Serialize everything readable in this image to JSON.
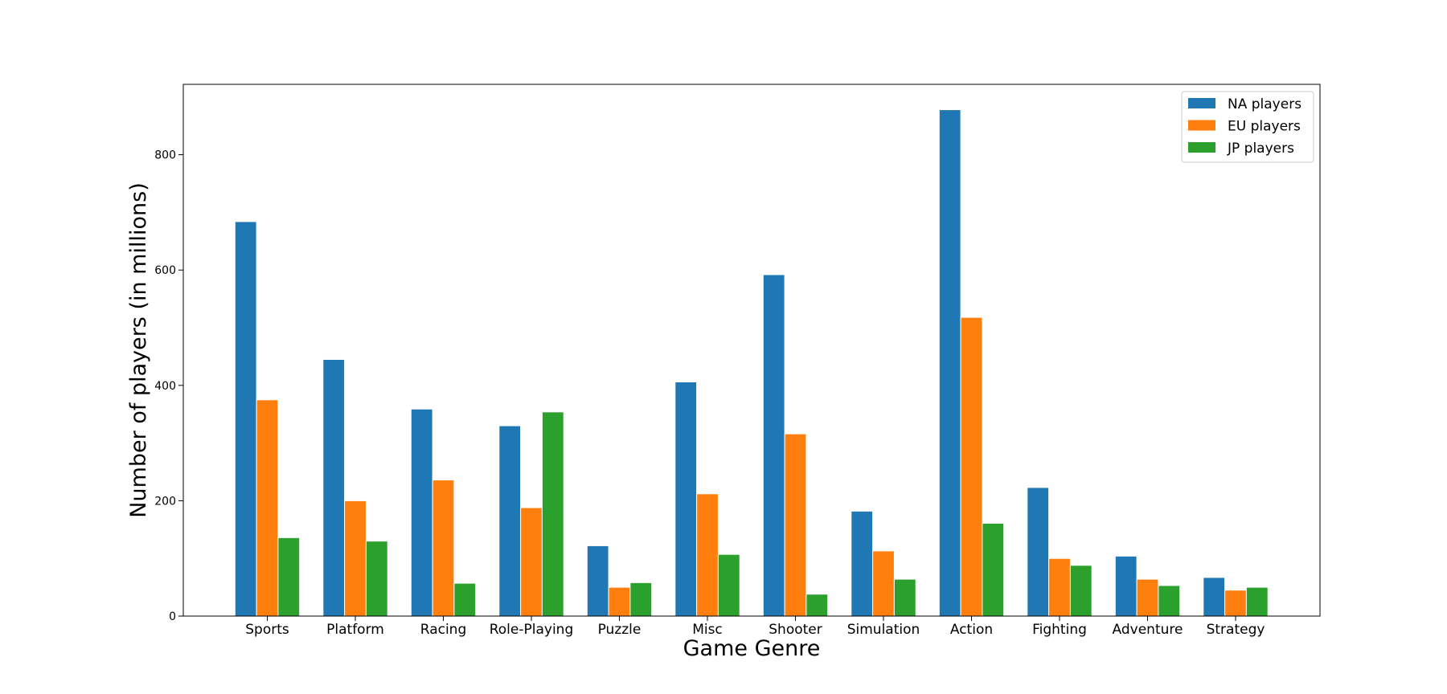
{
  "chart_data": {
    "type": "bar",
    "title": "",
    "xlabel": "Game Genre",
    "ylabel": "Number of players (in millions)",
    "categories": [
      "Sports",
      "Platform",
      "Racing",
      "Role-Playing",
      "Puzzle",
      "Misc",
      "Shooter",
      "Simulation",
      "Action",
      "Fighting",
      "Adventure",
      "Strategy"
    ],
    "series": [
      {
        "name": "NA players",
        "color": "#1f77b4",
        "values": [
          684,
          445,
          359,
          330,
          122,
          406,
          592,
          182,
          878,
          223,
          104,
          67
        ]
      },
      {
        "name": "EU players",
        "color": "#ff7f0e",
        "values": [
          375,
          200,
          236,
          188,
          50,
          212,
          316,
          113,
          518,
          100,
          64,
          45
        ]
      },
      {
        "name": "JP players",
        "color": "#2ca02c",
        "values": [
          136,
          130,
          57,
          354,
          58,
          107,
          38,
          64,
          161,
          88,
          53,
          50
        ]
      }
    ],
    "ylim": [
      0,
      922
    ],
    "yticks": [
      0,
      200,
      400,
      600,
      800
    ],
    "grid": false,
    "legend_position": "top-right"
  }
}
